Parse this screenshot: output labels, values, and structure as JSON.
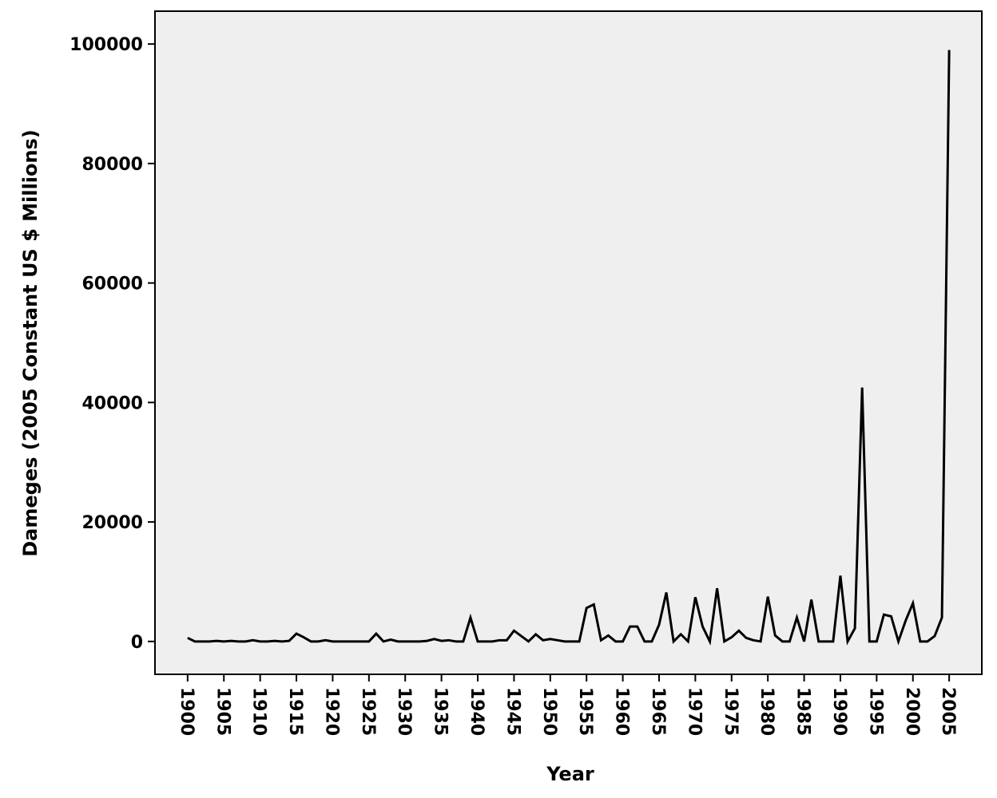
{
  "chart_data": {
    "type": "line",
    "title": "",
    "xlabel": "Year",
    "ylabel": "Dameges (2005 Constant US $ Millions)",
    "xlim": [
      1895.5,
      2009.5
    ],
    "ylim": [
      -5500,
      105500
    ],
    "xticks": [
      1900,
      1905,
      1910,
      1915,
      1920,
      1925,
      1930,
      1935,
      1940,
      1945,
      1950,
      1955,
      1960,
      1965,
      1970,
      1975,
      1980,
      1985,
      1990,
      1995,
      2000,
      2005
    ],
    "yticks": [
      0,
      20000,
      40000,
      60000,
      80000,
      100000
    ],
    "grid": false,
    "legend": "none",
    "colors": {
      "plot_background": "#efefef",
      "line": "#000000",
      "frame": "#000000"
    },
    "series": [
      {
        "x": [
          1900,
          1901,
          1902,
          1903,
          1904,
          1905,
          1906,
          1907,
          1908,
          1909,
          1910,
          1911,
          1912,
          1913,
          1914,
          1915,
          1916,
          1917,
          1918,
          1919,
          1920,
          1921,
          1922,
          1923,
          1924,
          1925,
          1926,
          1927,
          1928,
          1929,
          1930,
          1931,
          1932,
          1933,
          1934,
          1935,
          1936,
          1937,
          1938,
          1939,
          1940,
          1941,
          1942,
          1943,
          1944,
          1945,
          1946,
          1947,
          1948,
          1949,
          1950,
          1951,
          1952,
          1953,
          1954,
          1955,
          1956,
          1957,
          1958,
          1959,
          1960,
          1961,
          1962,
          1963,
          1964,
          1965,
          1966,
          1967,
          1968,
          1969,
          1970,
          1971,
          1972,
          1973,
          1974,
          1975,
          1976,
          1977,
          1978,
          1979,
          1980,
          1981,
          1982,
          1983,
          1984,
          1985,
          1986,
          1987,
          1988,
          1989,
          1990,
          1991,
          1992,
          1993,
          1994,
          1995,
          1996,
          1997,
          1998,
          1999,
          2000,
          2001,
          2002,
          2003,
          2004,
          2005
        ],
        "values": [
          600,
          0,
          0,
          0,
          100,
          0,
          100,
          0,
          0,
          200,
          0,
          0,
          100,
          0,
          100,
          1300,
          700,
          0,
          0,
          200,
          0,
          0,
          0,
          0,
          0,
          0,
          1300,
          0,
          300,
          0,
          0,
          0,
          0,
          100,
          400,
          100,
          200,
          0,
          0,
          4000,
          0,
          0,
          0,
          200,
          200,
          1800,
          900,
          0,
          1200,
          200,
          400,
          200,
          0,
          0,
          0,
          5600,
          6200,
          200,
          1000,
          0,
          0,
          2500,
          2500,
          0,
          0,
          2800,
          8200,
          0,
          1200,
          0,
          7400,
          2500,
          0,
          8900,
          0,
          700,
          1800,
          600,
          200,
          0,
          7500,
          1000,
          0,
          0,
          4000,
          0,
          7000,
          0,
          0,
          0,
          11000,
          0,
          2200,
          42500,
          0,
          0,
          4500,
          4200,
          0,
          3500,
          6400,
          0,
          0,
          900,
          4000,
          99000
        ]
      }
    ]
  }
}
